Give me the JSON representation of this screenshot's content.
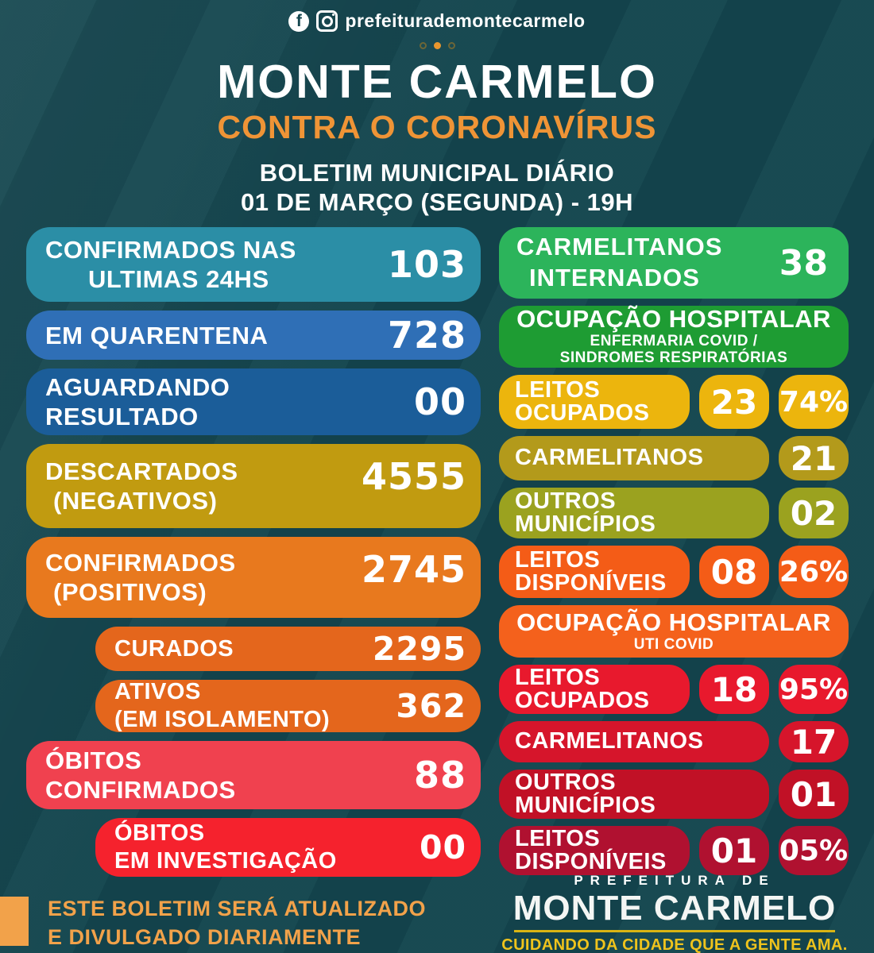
{
  "header": {
    "social_handle": "prefeiturademontecarmelo",
    "title": "MONTE CARMELO",
    "subtitle": "CONTRA O CORONAVÍRUS",
    "subtitle_color": "#ef9436",
    "bulletin_line1": "BOLETIM MUNICIPAL DIÁRIO",
    "bulletin_line2": "01 DE MARÇO (SEGUNDA) - 19H"
  },
  "left_stats": [
    {
      "line1": "CONFIRMADOS NAS",
      "line2": "ULTIMAS 24HS",
      "value": "103",
      "color": "#2b8ea6"
    },
    {
      "line1": "EM QUARENTENA",
      "line2": "",
      "value": "728",
      "color": "#2f6fb6"
    },
    {
      "line1": "AGUARDANDO",
      "line2": "RESULTADO",
      "value": "00",
      "color": "#1b5d99"
    },
    {
      "line1": "DESCARTADOS",
      "line2": "(NEGATIVOS)",
      "value": "4555",
      "color": "#c19b10"
    },
    {
      "line1": "CONFIRMADOS",
      "line2": "(POSITIVOS)",
      "value": "2745",
      "color": "#e8791e"
    },
    {
      "line1": "CURADOS",
      "line2": "",
      "value": "2295",
      "color": "#e4661c"
    },
    {
      "line1": "ATIVOS",
      "line2": "(EM ISOLAMENTO)",
      "value": "362",
      "color": "#e4661c"
    },
    {
      "line1": "ÓBITOS",
      "line2": "CONFIRMADOS",
      "value": "88",
      "color": "#f0414f"
    },
    {
      "line1": "ÓBITOS",
      "line2": "EM INVESTIGAÇÃO",
      "value": "00",
      "color": "#f5222d"
    }
  ],
  "right_panel": {
    "internados": {
      "line1": "CARMELITANOS",
      "line2": "INTERNADOS",
      "value": "38",
      "color": "#2cb45b"
    },
    "enfermaria_header": {
      "title": "OCUPAÇÃO HOSPITALAR",
      "sub1": "ENFERMARIA COVID /",
      "sub2": "SINDROMES RESPIRATÓRIAS",
      "color": "#1e9c33"
    },
    "enfermaria_rows": [
      {
        "line1": "LEITOS",
        "line2": "OCUPADOS",
        "value": "23",
        "percent": "74%",
        "color": "#ecb50d"
      },
      {
        "line1": "CARMELITANOS",
        "line2": "",
        "value": "21",
        "percent": "",
        "color": "#b39a1b"
      },
      {
        "line1": "OUTROS",
        "line2": "MUNICÍPIOS",
        "value": "02",
        "percent": "",
        "color": "#9ba21f"
      },
      {
        "line1": "LEITOS",
        "line2": "DISPONÍVEIS",
        "value": "08",
        "percent": "26%",
        "color": "#f45c17"
      }
    ],
    "uti_header": {
      "title": "OCUPAÇÃO HOSPITALAR",
      "sub1": "UTI COVID",
      "color": "#f4611c"
    },
    "uti_rows": [
      {
        "line1": "LEITOS",
        "line2": "OCUPADOS",
        "value": "18",
        "percent": "95%",
        "color": "#e8192d"
      },
      {
        "line1": "CARMELITANOS",
        "line2": "",
        "value": "17",
        "percent": "",
        "color": "#d6152b"
      },
      {
        "line1": "OUTROS",
        "line2": "MUNICÍPIOS",
        "value": "01",
        "percent": "",
        "color": "#c11126"
      },
      {
        "line1": "LEITOS",
        "line2": "DISPONÍVEIS",
        "value": "01",
        "percent": "05%",
        "color": "#b01130"
      }
    ]
  },
  "footer_left": {
    "line1": "ESTE BOLETIM SERÁ ATUALIZADO",
    "line2": "E DIVULGADO DIARIAMENTE",
    "color": "#f2a24a"
  },
  "footer_right": {
    "pre": "PREFEITURA DE",
    "name": "MONTE CARMELO",
    "tagline": "CUIDANDO DA CIDADE QUE A GENTE AMA.",
    "tagline_color": "#efc31c",
    "line_color": "#d9b414"
  }
}
